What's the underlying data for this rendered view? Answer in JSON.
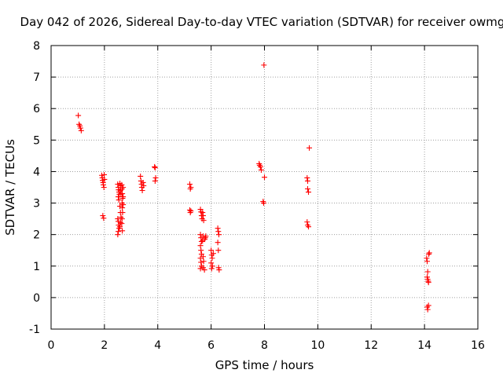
{
  "chart_data": {
    "type": "scatter",
    "title": "Day 042 of 2026, Sidereal Day-to-day VTEC variation (SDTVAR) for receiver owmg",
    "xlabel": "GPS time / hours",
    "ylabel": "SDTVAR / TECUs",
    "xlim": [
      0,
      16
    ],
    "ylim": [
      -1,
      8
    ],
    "xticks": [
      "0",
      "2",
      "4",
      "6",
      "8",
      "10",
      "12",
      "14",
      "16"
    ],
    "yticks": [
      "-1",
      "0",
      "1",
      "2",
      "3",
      "4",
      "5",
      "6",
      "7",
      "8"
    ],
    "grid": true,
    "marker": "+",
    "color": "#ff0000",
    "series": [
      {
        "name": "SDTVAR",
        "points": [
          [
            1.02,
            5.78
          ],
          [
            1.05,
            5.5
          ],
          [
            1.08,
            5.45
          ],
          [
            1.1,
            5.38
          ],
          [
            1.13,
            5.3
          ],
          [
            1.9,
            3.88
          ],
          [
            1.92,
            3.8
          ],
          [
            1.93,
            3.72
          ],
          [
            1.95,
            3.65
          ],
          [
            1.96,
            3.58
          ],
          [
            1.98,
            3.5
          ],
          [
            1.94,
            2.6
          ],
          [
            1.97,
            2.52
          ],
          [
            1.99,
            3.9
          ],
          [
            2.0,
            3.75
          ],
          [
            2.5,
            3.6
          ],
          [
            2.52,
            3.5
          ],
          [
            2.53,
            3.42
          ],
          [
            2.55,
            3.35
          ],
          [
            2.56,
            3.28
          ],
          [
            2.52,
            3.2
          ],
          [
            2.54,
            3.1
          ],
          [
            2.5,
            2.5
          ],
          [
            2.52,
            2.42
          ],
          [
            2.53,
            2.3
          ],
          [
            2.55,
            2.2
          ],
          [
            2.52,
            2.1
          ],
          [
            2.5,
            2.0
          ],
          [
            2.58,
            3.62
          ],
          [
            2.6,
            3.55
          ],
          [
            2.6,
            3.4
          ],
          [
            2.62,
            3.3
          ],
          [
            2.58,
            2.9
          ],
          [
            2.6,
            2.7
          ],
          [
            2.62,
            2.55
          ],
          [
            2.6,
            2.38
          ],
          [
            2.58,
            2.25
          ],
          [
            2.65,
            3.58
          ],
          [
            2.66,
            3.45
          ],
          [
            2.67,
            3.3
          ],
          [
            2.68,
            3.15
          ],
          [
            2.66,
            3.0
          ],
          [
            2.67,
            2.85
          ],
          [
            2.68,
            2.7
          ],
          [
            2.66,
            2.5
          ],
          [
            2.65,
            2.35
          ],
          [
            2.67,
            2.12
          ],
          [
            2.7,
            3.5
          ],
          [
            2.7,
            3.2
          ],
          [
            2.7,
            2.95
          ],
          [
            3.35,
            3.85
          ],
          [
            3.37,
            3.7
          ],
          [
            3.39,
            3.6
          ],
          [
            3.4,
            3.5
          ],
          [
            3.42,
            3.4
          ],
          [
            3.45,
            3.65
          ],
          [
            3.47,
            3.55
          ],
          [
            3.88,
            4.15
          ],
          [
            3.9,
            4.12
          ],
          [
            3.92,
            3.8
          ],
          [
            3.9,
            3.7
          ],
          [
            5.2,
            3.6
          ],
          [
            5.22,
            3.45
          ],
          [
            5.24,
            3.5
          ],
          [
            5.2,
            2.78
          ],
          [
            5.22,
            2.7
          ],
          [
            5.24,
            2.75
          ],
          [
            5.6,
            2.8
          ],
          [
            5.62,
            2.72
          ],
          [
            5.64,
            2.6
          ],
          [
            5.66,
            2.5
          ],
          [
            5.6,
            2.0
          ],
          [
            5.62,
            1.9
          ],
          [
            5.64,
            1.78
          ],
          [
            5.6,
            1.65
          ],
          [
            5.62,
            1.5
          ],
          [
            5.64,
            1.38
          ],
          [
            5.6,
            1.25
          ],
          [
            5.62,
            1.12
          ],
          [
            5.64,
            1.0
          ],
          [
            5.6,
            0.92
          ],
          [
            5.68,
            2.7
          ],
          [
            5.7,
            2.6
          ],
          [
            5.72,
            2.45
          ],
          [
            5.7,
            1.95
          ],
          [
            5.68,
            1.8
          ],
          [
            5.7,
            1.3
          ],
          [
            5.72,
            1.15
          ],
          [
            5.7,
            0.95
          ],
          [
            5.75,
            0.88
          ],
          [
            5.78,
            1.9
          ],
          [
            5.8,
            1.95
          ],
          [
            5.76,
            1.85
          ],
          [
            6.0,
            1.5
          ],
          [
            6.02,
            1.35
          ],
          [
            6.04,
            1.25
          ],
          [
            6.0,
            1.1
          ],
          [
            6.05,
            1.0
          ],
          [
            6.02,
            0.92
          ],
          [
            6.08,
            1.4
          ],
          [
            6.25,
            2.2
          ],
          [
            6.27,
            2.1
          ],
          [
            6.29,
            2.0
          ],
          [
            6.25,
            1.75
          ],
          [
            6.27,
            1.5
          ],
          [
            6.28,
            0.95
          ],
          [
            6.3,
            0.88
          ],
          [
            7.8,
            4.25
          ],
          [
            7.82,
            4.2
          ],
          [
            7.85,
            4.15
          ],
          [
            7.88,
            4.05
          ],
          [
            7.95,
            3.05
          ],
          [
            7.97,
            3.0
          ],
          [
            7.98,
            7.38
          ],
          [
            8.0,
            3.82
          ],
          [
            9.6,
            3.8
          ],
          [
            9.62,
            3.7
          ],
          [
            9.62,
            3.45
          ],
          [
            9.65,
            3.35
          ],
          [
            9.6,
            2.4
          ],
          [
            9.62,
            2.3
          ],
          [
            9.65,
            2.25
          ],
          [
            9.68,
            4.75
          ],
          [
            14.08,
            1.25
          ],
          [
            14.1,
            1.15
          ],
          [
            14.12,
            0.82
          ],
          [
            14.1,
            0.65
          ],
          [
            14.12,
            0.58
          ],
          [
            14.14,
            0.52
          ],
          [
            14.15,
            0.48
          ],
          [
            14.16,
            1.38
          ],
          [
            14.18,
            1.42
          ],
          [
            14.1,
            -0.3
          ],
          [
            14.12,
            -0.38
          ],
          [
            14.15,
            -0.25
          ]
        ]
      }
    ]
  }
}
